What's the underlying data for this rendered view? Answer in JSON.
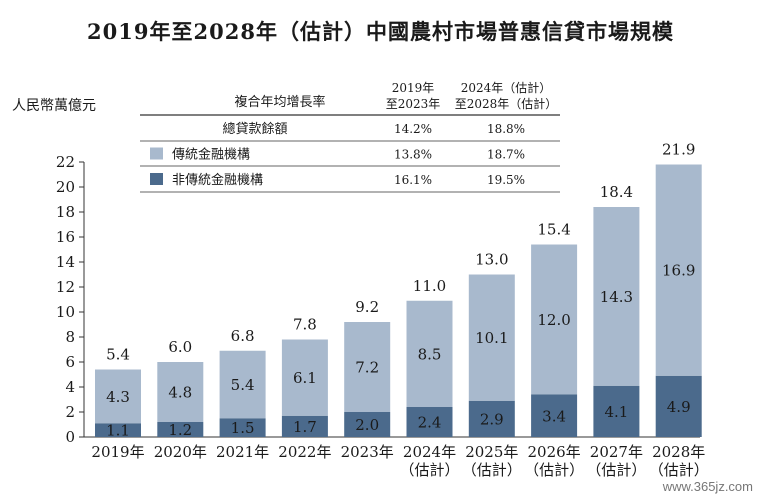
{
  "chart_data": {
    "type": "bar",
    "title": "2019年至2028年（估計）中國農村市場普惠信貸市場規模",
    "ylabel": "人民幣萬億元",
    "ylim": [
      0,
      22
    ],
    "yticks": [
      0,
      2,
      4,
      6,
      8,
      10,
      12,
      14,
      16,
      18,
      20,
      22
    ],
    "grid": false,
    "stacked": true,
    "categories": [
      "2019年",
      "2020年",
      "2021年",
      "2022年",
      "2023年",
      "2024年",
      "2025年",
      "2026年",
      "2027年",
      "2028年"
    ],
    "category_sublabels": [
      "",
      "",
      "",
      "",
      "",
      "（估計）",
      "（估計）",
      "（估計）",
      "（估計）",
      "（估計）"
    ],
    "series": [
      {
        "name": "非傳統金融機構",
        "color": "#4b6a8c",
        "values": [
          1.1,
          1.2,
          1.5,
          1.7,
          2.0,
          2.4,
          2.9,
          3.4,
          4.1,
          4.9
        ]
      },
      {
        "name": "傳統金融機構",
        "color": "#a8b9cd",
        "values": [
          4.3,
          4.8,
          5.4,
          6.1,
          7.2,
          8.5,
          10.1,
          12.0,
          14.3,
          16.9
        ]
      }
    ],
    "totals": [
      5.4,
      6.0,
      6.8,
      7.8,
      9.2,
      11.0,
      13.0,
      15.4,
      18.4,
      21.9
    ],
    "cagr_table": {
      "header_label": "複合年均增長率",
      "col1_header": [
        "2019年",
        "至2023年"
      ],
      "col2_header": [
        "2024年（估計）",
        "至2028年（估計）"
      ],
      "rows": [
        {
          "label": "總貸款餘額",
          "swatch": null,
          "v1": "14.2%",
          "v2": "18.8%"
        },
        {
          "label": "傳統金融機構",
          "swatch": "#a8b9cd",
          "v1": "13.8%",
          "v2": "18.7%"
        },
        {
          "label": "非傳統金融機構",
          "swatch": "#4b6a8c",
          "v1": "16.1%",
          "v2": "19.5%"
        }
      ]
    }
  },
  "watermark": "www.365jz.com"
}
